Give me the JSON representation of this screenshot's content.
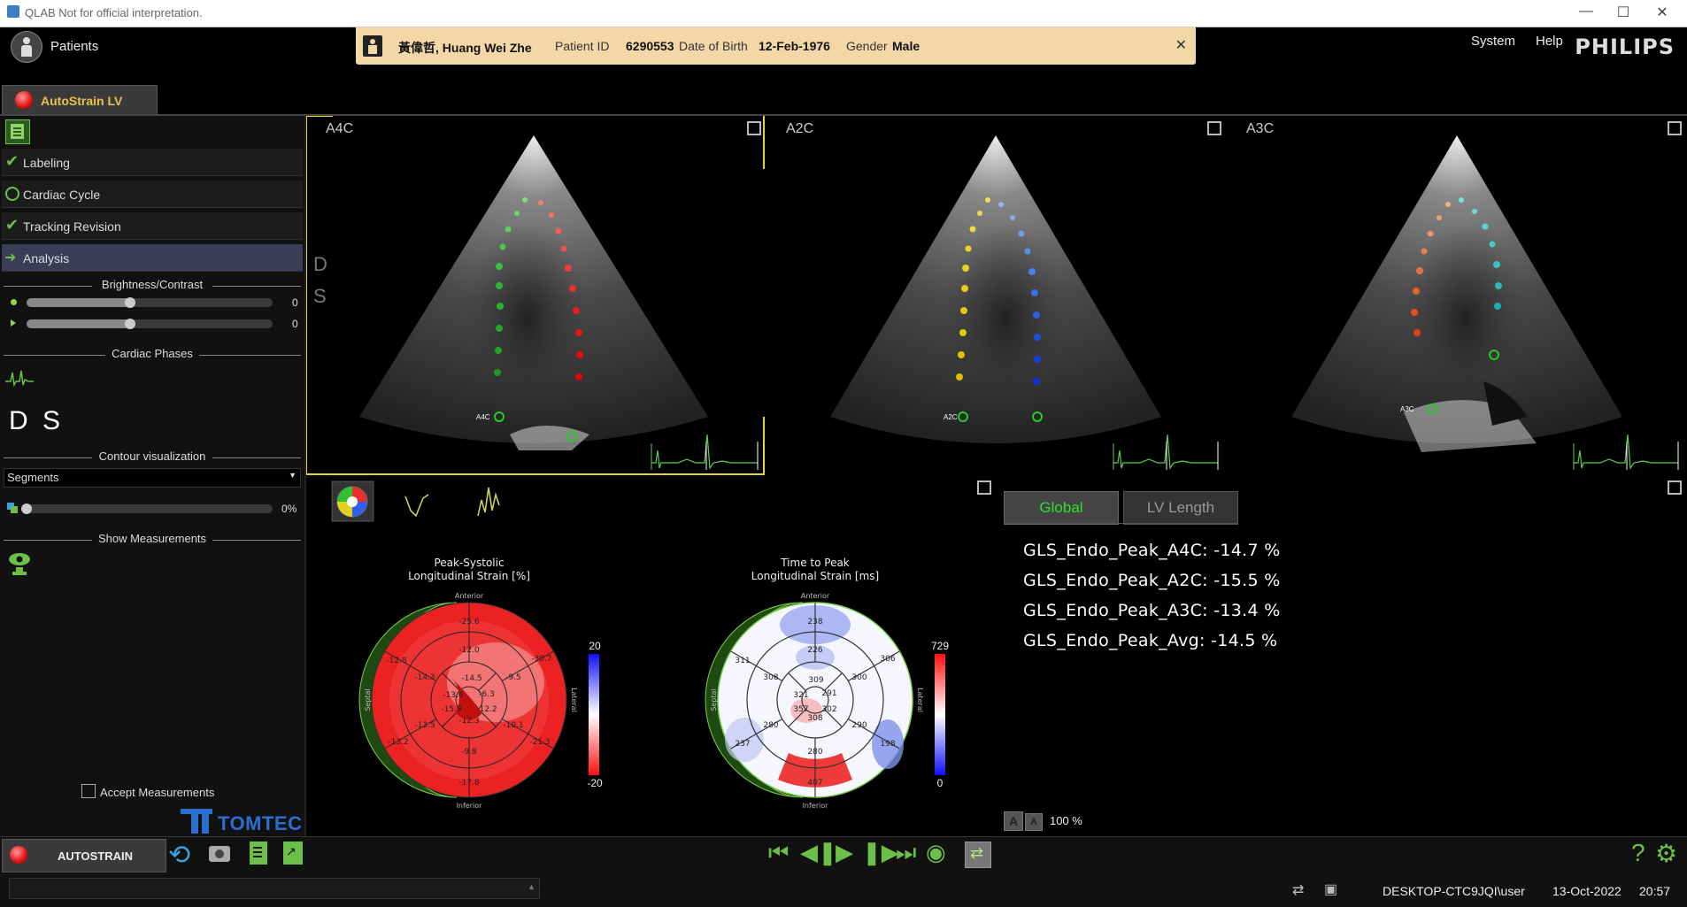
{
  "window": {
    "title": "QLAB Not for official interpretation."
  },
  "header": {
    "patients": "Patients",
    "system": "System",
    "help": "Help",
    "brand": "PHILIPS"
  },
  "patient": {
    "name": "黃偉哲, Huang Wei Zhe",
    "id_label": "Patient ID",
    "id": "6290553",
    "dob_label": "Date of Birth",
    "dob": "12-Feb-1976",
    "gender_label": "Gender",
    "gender": "Male"
  },
  "module_tab": "AutoStrain LV",
  "steps": [
    {
      "label": "Labeling",
      "state": "done"
    },
    {
      "label": "Cardiac Cycle",
      "state": "pending"
    },
    {
      "label": "Tracking Revision",
      "state": "done"
    },
    {
      "label": "Analysis",
      "state": "active"
    }
  ],
  "brightness": {
    "title": "Brightness/Contrast",
    "brightness_value": "0",
    "contrast_value": "0",
    "brightness_level": 0.5,
    "contrast_level": 0.5
  },
  "cardiac_phases": {
    "title": "Cardiac Phases",
    "d": "D",
    "s": "S"
  },
  "contour": {
    "title": "Contour visualization",
    "selected": "Segments",
    "opacity": "0%",
    "opacity_level": 0.0
  },
  "show_measurements": "Show Measurements",
  "accept_measurements": "Accept Measurements",
  "tomtec": "TOMTEC",
  "views": [
    {
      "title": "A4C",
      "label": "A4C"
    },
    {
      "title": "A2C",
      "label": "A2C"
    },
    {
      "title": "A3C",
      "label": "A3C"
    }
  ],
  "overlay": {
    "d": "D",
    "s": "S"
  },
  "bullseye_strain": {
    "title1": "Peak-Systolic",
    "title2": "Longitudinal Strain [%]",
    "scale_max": "20",
    "scale_min": "-20",
    "anterior": "Anterior",
    "inferior": "Inferior",
    "septal": "Septal",
    "lateral": "Lateral",
    "segments": [
      "-25.6",
      "-30.7",
      "-21.3",
      "-17.8",
      "-13.2",
      "-12.8",
      "-12.0",
      "-9.5",
      "-10.1",
      "-9.8",
      "-13.5",
      "-14.3",
      "-14.5",
      "-6.3",
      "-12.2",
      "-12.3",
      "-15.9",
      "-13.6"
    ]
  },
  "bullseye_time": {
    "title1": "Time to Peak",
    "title2": "Longitudinal Strain [ms]",
    "scale_max": "729",
    "scale_min": "0",
    "anterior": "Anterior",
    "inferior": "Inferior",
    "septal": "Septal",
    "lateral": "Lateral",
    "segments": [
      "238",
      "306",
      "198",
      "407",
      "237",
      "311",
      "226",
      "300",
      "290",
      "280",
      "280",
      "308",
      "309",
      "291",
      "302",
      "308",
      "357",
      "321"
    ]
  },
  "results_tabs": {
    "global": "Global",
    "lv_length": "LV Length"
  },
  "gls": [
    "GLS_Endo_Peak_A4C: -14.7 %",
    "GLS_Endo_Peak_A2C: -15.5 %",
    "GLS_Endo_Peak_A3C: -13.4 %",
    "GLS_Endo_Peak_Avg: -14.5 %"
  ],
  "zoom": {
    "a1": "A",
    "a2": "A",
    "value": "100 %"
  },
  "toolbar": {
    "autostrain": "AUTOSTRAIN"
  },
  "status": {
    "user": "DESKTOP-CTC9JQI\\user",
    "date": "13-Oct-2022",
    "time": "20:57"
  }
}
